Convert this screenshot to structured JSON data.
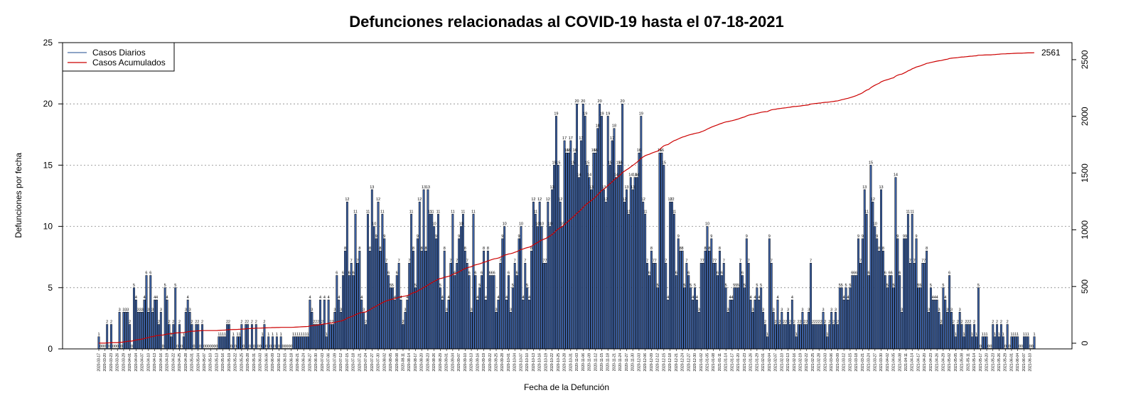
{
  "chart_data": {
    "type": "bar",
    "title": "Defunciones relacionadas al COVID-19 hasta el 07-18-2021",
    "xlabel": "Fecha de la Defunción",
    "ylabel": "Defunciones por fecha",
    "ylim": [
      0,
      25
    ],
    "y_ticks": [
      "0",
      "5",
      "10",
      "15",
      "20",
      "25"
    ],
    "y2lim": [
      -50,
      2650
    ],
    "y2_ticks": [
      "0",
      "500",
      "1000",
      "1500",
      "2000",
      "2500"
    ],
    "grid": "horizontal dotted",
    "legend_position": "top-left",
    "start_date": "2020-03-17",
    "end_date": "2021-07-18",
    "date_tick_labels": [
      "2020-03-17",
      "2020-03-20",
      "2020-03-23",
      "2020-03-26",
      "2020-03-29",
      "2020-04-01",
      "2020-04-04",
      "2020-04-07",
      "2020-04-10",
      "2020-04-13",
      "2020-04-16",
      "2020-04-19",
      "2020-04-22",
      "2020-04-25",
      "2020-04-28",
      "2020-05-01",
      "2020-05-04",
      "2020-05-07",
      "2020-05-10",
      "2020-05-13",
      "2020-05-16",
      "2020-05-19",
      "2020-05-22",
      "2020-05-25",
      "2020-05-28",
      "2020-05-31",
      "2020-06-03",
      "2020-06-06",
      "2020-06-09",
      "2020-06-12",
      "2020-06-15",
      "2020-06-18",
      "2020-06-21",
      "2020-06-24",
      "2020-06-27",
      "2020-06-30",
      "2020-07-03",
      "2020-07-06",
      "2020-07-09",
      "2020-07-12",
      "2020-07-15",
      "2020-07-18",
      "2020-07-21",
      "2020-07-24",
      "2020-07-27",
      "2020-07-30",
      "2020-08-02",
      "2020-08-05",
      "2020-08-08",
      "2020-08-11",
      "2020-08-14",
      "2020-08-17",
      "2020-08-20",
      "2020-08-23",
      "2020-08-26",
      "2020-08-29",
      "2020-09-01",
      "2020-09-04",
      "2020-09-07",
      "2020-09-10",
      "2020-09-13",
      "2020-09-16",
      "2020-09-19",
      "2020-09-22",
      "2020-09-25",
      "2020-09-28",
      "2020-10-01",
      "2020-10-04",
      "2020-10-07",
      "2020-10-10",
      "2020-10-13",
      "2020-10-16",
      "2020-10-19",
      "2020-10-22",
      "2020-10-25",
      "2020-10-28",
      "2020-10-31",
      "2020-11-03",
      "2020-11-06",
      "2020-11-09",
      "2020-11-12",
      "2020-11-15",
      "2020-11-18",
      "2020-11-21",
      "2020-11-24",
      "2020-11-27",
      "2020-11-30",
      "2020-12-03",
      "2020-12-06",
      "2020-12-09",
      "2020-12-12",
      "2020-12-15",
      "2020-12-18",
      "2020-12-21",
      "2020-12-24",
      "2020-12-27",
      "2020-12-30",
      "2021-01-02",
      "2021-01-05",
      "2021-01-08",
      "2021-01-11",
      "2021-01-14",
      "2021-01-17",
      "2021-01-20",
      "2021-01-23",
      "2021-01-26",
      "2021-01-29",
      "2021-02-01",
      "2021-02-04",
      "2021-02-07",
      "2021-02-10",
      "2021-02-13",
      "2021-02-16",
      "2021-02-19",
      "2021-02-22",
      "2021-02-25",
      "2021-02-28",
      "2021-03-03",
      "2021-03-06",
      "2021-03-09",
      "2021-03-12",
      "2021-03-15",
      "2021-03-18",
      "2021-03-21",
      "2021-03-24",
      "2021-03-27",
      "2021-03-30",
      "2021-04-02",
      "2021-04-05",
      "2021-04-08",
      "2021-04-11",
      "2021-04-14",
      "2021-04-17",
      "2021-04-20",
      "2021-04-23",
      "2021-04-26",
      "2021-04-29",
      "2021-05-02",
      "2021-05-05",
      "2021-05-08",
      "2021-05-11",
      "2021-05-14",
      "2021-05-17",
      "2021-05-20",
      "2021-05-23",
      "2021-05-26",
      "2021-05-29",
      "2021-06-01",
      "2021-06-04",
      "2021-06-07",
      "2021-06-10",
      "2021-06-13",
      "2021-06-16",
      "2021-06-19",
      "2021-06-22",
      "2021-06-25",
      "2021-06-28",
      "2021-07-01",
      "2021-07-04",
      "2021-07-07",
      "2021-07-10",
      "2021-07-13",
      "2021-07-16"
    ],
    "values": [
      1,
      0,
      0,
      0,
      2,
      0,
      2,
      0,
      0,
      0,
      3,
      0,
      3,
      3,
      3,
      2,
      0,
      5,
      4,
      3,
      3,
      3,
      4,
      6,
      3,
      6,
      3,
      4,
      4,
      2,
      3,
      0,
      5,
      4,
      2,
      1,
      2,
      5,
      0,
      2,
      0,
      1,
      3,
      4,
      3,
      2,
      0,
      2,
      2,
      0,
      2,
      0,
      0,
      0,
      0,
      0,
      0,
      0,
      1,
      1,
      1,
      1,
      2,
      2,
      0,
      1,
      0,
      1,
      1,
      2,
      0,
      2,
      2,
      0,
      2,
      0,
      2,
      0,
      0,
      1,
      2,
      0,
      1,
      0,
      1,
      0,
      1,
      0,
      1,
      0,
      0,
      0,
      0,
      0,
      1,
      1,
      1,
      1,
      1,
      1,
      1,
      1,
      4,
      3,
      2,
      2,
      2,
      4,
      2,
      4,
      1,
      4,
      2,
      2,
      3,
      6,
      4,
      3,
      6,
      8,
      12,
      6,
      7,
      6,
      11,
      7,
      8,
      4,
      3,
      2,
      11,
      8,
      13,
      10,
      9,
      12,
      8,
      11,
      9,
      7,
      6,
      5,
      5,
      4,
      6,
      7,
      4,
      2,
      3,
      4,
      7,
      11,
      8,
      5,
      9,
      12,
      8,
      13,
      8,
      13,
      11,
      11,
      10,
      9,
      11,
      5,
      4,
      8,
      3,
      4,
      7,
      11,
      6,
      7,
      9,
      10,
      11,
      8,
      7,
      6,
      3,
      11,
      6,
      4,
      5,
      6,
      8,
      4,
      8,
      6,
      6,
      6,
      3,
      4,
      7,
      9,
      10,
      4,
      6,
      3,
      5,
      7,
      6,
      9,
      10,
      4,
      7,
      5,
      4,
      8,
      12,
      11,
      10,
      12,
      10,
      7,
      7,
      12,
      10,
      13,
      15,
      19,
      15,
      12,
      10,
      17,
      16,
      16,
      17,
      15,
      16,
      20,
      14,
      17,
      20,
      19,
      15,
      14,
      13,
      16,
      16,
      18,
      20,
      19,
      13,
      12,
      19,
      15,
      17,
      18,
      14,
      15,
      15,
      20,
      12,
      13,
      11,
      14,
      13,
      14,
      14,
      16,
      19,
      12,
      11,
      7,
      6,
      8,
      7,
      7,
      5,
      16,
      16,
      15,
      7,
      4,
      12,
      12,
      11,
      6,
      9,
      8,
      8,
      5,
      7,
      6,
      5,
      4,
      5,
      4,
      3,
      7,
      7,
      8,
      10,
      8,
      9,
      7,
      7,
      6,
      8,
      6,
      7,
      5,
      3,
      4,
      4,
      5,
      5,
      5,
      7,
      6,
      5,
      9,
      7,
      4,
      3,
      4,
      5,
      4,
      5,
      3,
      2,
      1,
      9,
      7,
      3,
      2,
      4,
      2,
      3,
      2,
      2,
      3,
      2,
      4,
      2,
      1,
      2,
      2,
      3,
      2,
      2,
      3,
      7,
      2,
      2,
      2,
      2,
      2,
      3,
      2,
      1,
      2,
      3,
      2,
      3,
      2,
      5,
      5,
      4,
      5,
      4,
      5,
      6,
      6,
      6,
      9,
      7,
      9,
      13,
      11,
      6,
      15,
      12,
      10,
      9,
      8,
      13,
      8,
      6,
      5,
      6,
      6,
      5,
      14,
      9,
      6,
      3,
      9,
      9,
      11,
      7,
      11,
      7,
      9,
      5,
      5,
      7,
      7,
      8,
      3,
      5,
      4,
      4,
      4,
      3,
      2,
      5,
      4,
      3,
      6,
      3,
      2,
      1,
      2,
      3,
      2,
      1,
      2,
      2,
      2,
      1,
      2,
      1,
      5,
      0,
      1,
      1,
      1,
      0,
      0,
      2,
      1,
      2,
      1,
      2,
      1,
      0,
      2,
      0,
      1,
      1,
      1,
      1,
      0,
      0,
      1,
      1,
      1,
      0,
      0,
      1
    ],
    "cumulative_end": 2561,
    "series": [
      {
        "name": "Casos Diarios",
        "color": "#4a6fa5"
      },
      {
        "name": "Casos Acumulados",
        "color": "#cc0000"
      }
    ]
  },
  "colors": {
    "bar_fill": "#3f64a8",
    "bar_edge": "#000000",
    "cumulative_line": "#cc0000",
    "grid": "#888888"
  }
}
